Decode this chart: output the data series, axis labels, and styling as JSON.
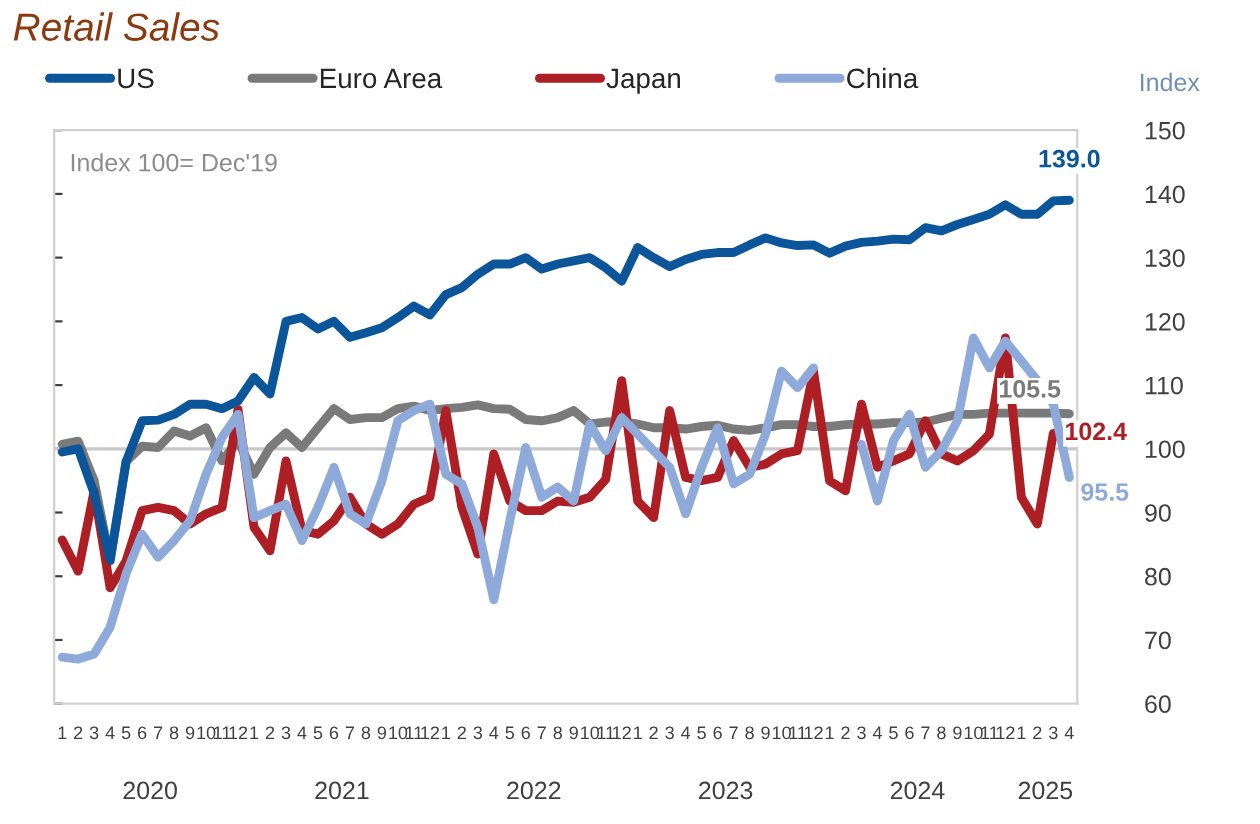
{
  "chart_data": {
    "type": "line",
    "title": "Retail Sales",
    "ylabel": "Index",
    "categories": [
      "1",
      "2",
      "3",
      "4",
      "5",
      "6",
      "7",
      "8",
      "9",
      "10",
      "11",
      "12",
      "1",
      "2",
      "3",
      "4",
      "5",
      "6",
      "7",
      "8",
      "9",
      "10",
      "11",
      "12",
      "1",
      "2",
      "3",
      "4",
      "5",
      "6",
      "7",
      "8",
      "9",
      "10",
      "11",
      "12",
      "1",
      "2",
      "3",
      "4",
      "5",
      "6",
      "7",
      "8",
      "9",
      "10",
      "11",
      "12",
      "1",
      "2",
      "3",
      "4",
      "5",
      "6",
      "7",
      "8",
      "9",
      "10",
      "11",
      "12",
      "1",
      "2",
      "3",
      "4"
    ],
    "series": [
      {
        "name": "US",
        "color": "#0b559b",
        "values": [
          99.5,
          100,
          93,
          82.5,
          98,
          104.4,
          104.5,
          105.4,
          107,
          107,
          106.3,
          107.5,
          111.2,
          108.6,
          120,
          120.6,
          118.8,
          120,
          117.5,
          118.2,
          119,
          120.6,
          122.4,
          121,
          124.2,
          125.3,
          127.4,
          129,
          129,
          130,
          128.2,
          129,
          129.5,
          130,
          128.4,
          126.3,
          131.6,
          130,
          128.6,
          129.7,
          130.5,
          130.8,
          130.8,
          132,
          133.1,
          132.3,
          131.9,
          132,
          130.7,
          131.8,
          132.4,
          132.6,
          132.9,
          132.8,
          134.7,
          134.2,
          135.2,
          136,
          136.8,
          138.3,
          136.8,
          136.8,
          138.9,
          139.0
        ],
        "value_labels": [
          null,
          null,
          null,
          null,
          null,
          null,
          null,
          null,
          null,
          null,
          null,
          null,
          null,
          null,
          null,
          null,
          null,
          null,
          null,
          null,
          null,
          null,
          null,
          null,
          null,
          null,
          null,
          null,
          null,
          null,
          null,
          null,
          null,
          null,
          null,
          null,
          null,
          null,
          null,
          null,
          null,
          null,
          null,
          null,
          null,
          null,
          null,
          null,
          null,
          null,
          null,
          null,
          null,
          null,
          null,
          null,
          null,
          null,
          null,
          null,
          null,
          null,
          null,
          "139.0"
        ]
      },
      {
        "name": "Euro Area",
        "color": "#7a7a7a",
        "values": [
          100.7,
          101.2,
          95,
          82.4,
          98,
          100.4,
          100.2,
          102.8,
          102,
          103.3,
          98.1,
          101.3,
          96,
          100.2,
          102.5,
          100.2,
          103.3,
          106.3,
          104.6,
          104.9,
          104.9,
          106.3,
          106.7,
          106,
          106.3,
          106.5,
          106.9,
          106.3,
          106.2,
          104.6,
          104.4,
          104.9,
          106,
          103.9,
          104.2,
          104.2,
          103.9,
          103.3,
          103.3,
          103.1,
          103.5,
          103.7,
          103.1,
          102.9,
          103.3,
          103.8,
          103.8,
          103.5,
          103.5,
          103.8,
          103.9,
          103.9,
          104.1,
          104.1,
          104.2,
          104.8,
          105.4,
          105.4,
          105.6,
          105.6,
          105.6,
          105.6,
          105.6,
          105.5
        ],
        "value_labels": [
          null,
          null,
          null,
          null,
          null,
          null,
          null,
          null,
          null,
          null,
          null,
          null,
          null,
          null,
          null,
          null,
          null,
          null,
          null,
          null,
          null,
          null,
          null,
          null,
          null,
          null,
          null,
          null,
          null,
          null,
          null,
          null,
          null,
          null,
          null,
          null,
          null,
          null,
          null,
          null,
          null,
          null,
          null,
          null,
          null,
          null,
          null,
          null,
          null,
          null,
          null,
          null,
          null,
          null,
          null,
          null,
          null,
          null,
          null,
          null,
          null,
          null,
          null,
          "105.5"
        ]
      },
      {
        "name": "Japan",
        "color": "#ad1f24",
        "values": [
          85.7,
          80.8,
          93.4,
          78.2,
          82.4,
          90.3,
          90.8,
          90.3,
          88.2,
          89.8,
          90.8,
          106.2,
          87.7,
          84,
          98.1,
          87.2,
          86.6,
          88.7,
          92.4,
          88.2,
          86.6,
          88.2,
          91.3,
          92.4,
          106,
          90.8,
          83.5,
          99.2,
          91.8,
          90.3,
          90.3,
          91.8,
          91.6,
          92.4,
          95.2,
          110.7,
          91.8,
          89.2,
          106,
          95.5,
          95,
          95.5,
          101.3,
          97.1,
          97.6,
          99.2,
          99.7,
          112.2,
          95,
          93.4,
          107,
          97.1,
          98.1,
          99.2,
          104.4,
          99.2,
          98.1,
          99.7,
          102.3,
          117.4,
          92.4,
          88.2,
          102.4,
          null
        ],
        "value_labels": [
          null,
          null,
          null,
          null,
          null,
          null,
          null,
          null,
          null,
          null,
          null,
          null,
          null,
          null,
          null,
          null,
          null,
          null,
          null,
          null,
          null,
          null,
          null,
          null,
          null,
          null,
          null,
          null,
          null,
          null,
          null,
          null,
          null,
          null,
          null,
          null,
          null,
          null,
          null,
          null,
          null,
          null,
          null,
          null,
          null,
          null,
          null,
          null,
          null,
          null,
          null,
          null,
          null,
          null,
          null,
          null,
          null,
          null,
          null,
          null,
          null,
          null,
          "102.4",
          null
        ]
      },
      {
        "name": "China",
        "color": "#8eaadb",
        "values": [
          67.3,
          67,
          67.8,
          72,
          80.4,
          86.6,
          83,
          85.6,
          88.7,
          96,
          101.8,
          105.4,
          89.2,
          90.3,
          91.3,
          85.6,
          90.8,
          97.1,
          89.8,
          88.2,
          95,
          104.4,
          106,
          107,
          96,
          94.5,
          87.7,
          76.3,
          88.7,
          100.2,
          92.4,
          94,
          91.8,
          103.9,
          99.7,
          104.9,
          102.3,
          99.7,
          97.1,
          89.8,
          97.1,
          103.3,
          94.5,
          96,
          102.3,
          112.2,
          109.6,
          112.7,
          null,
          null,
          100.7,
          91.8,
          101.3,
          105.4,
          97.1,
          99.7,
          104.4,
          117.4,
          112.7,
          116.9,
          113.8,
          110.7,
          107,
          95.5
        ],
        "value_labels": [
          null,
          null,
          null,
          null,
          null,
          null,
          null,
          null,
          null,
          null,
          null,
          null,
          null,
          null,
          null,
          null,
          null,
          null,
          null,
          null,
          null,
          null,
          null,
          null,
          null,
          null,
          null,
          null,
          null,
          null,
          null,
          null,
          null,
          null,
          null,
          null,
          null,
          null,
          null,
          null,
          null,
          null,
          null,
          null,
          null,
          null,
          null,
          null,
          null,
          null,
          null,
          null,
          null,
          null,
          null,
          null,
          null,
          null,
          null,
          null,
          null,
          null,
          null,
          "95.5"
        ]
      }
    ],
    "ylim": [
      60,
      150
    ],
    "yticks": [
      60,
      70,
      80,
      90,
      100,
      110,
      120,
      130,
      140,
      150
    ],
    "ref_lines": [
      {
        "axis": "y",
        "value": 100,
        "color": "#c8c8c8"
      }
    ],
    "annotations": [
      "Index 100= Dec'19",
      "2020",
      "2021",
      "2022",
      "2023",
      "2024",
      "2025"
    ],
    "legend": "top",
    "grid": false,
    "marker": "none",
    "line_style": "solid"
  }
}
